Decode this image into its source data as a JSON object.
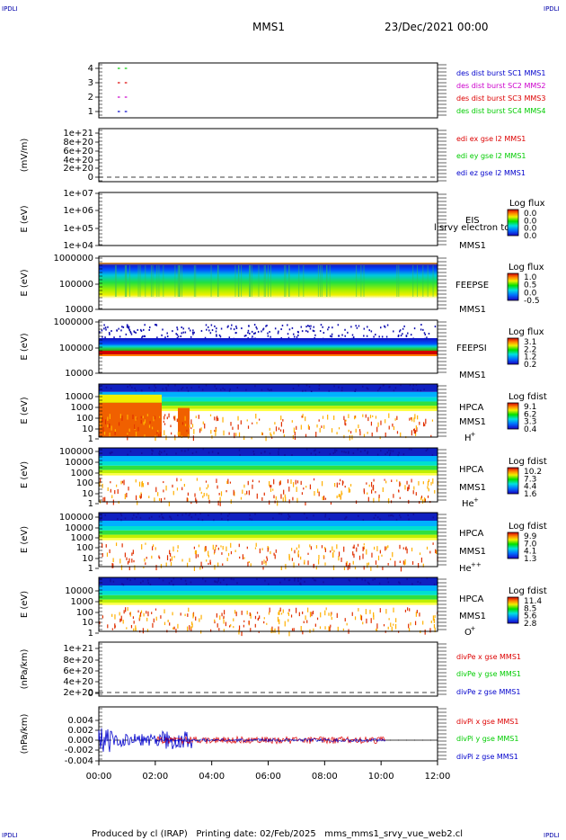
{
  "corner_tag": "IPDLI",
  "header": {
    "mission": "MMS1",
    "date": "23/Dec/2021 00:00"
  },
  "footer": {
    "text": "Produced by cl (IRAP)   Printing date: 02/Feb/2025   mms_mms1_srvy_vue_web2.cl"
  },
  "colors": {
    "red": "#dd0000",
    "green": "#00cc00",
    "blue": "#0000cc",
    "magenta": "#cc00cc"
  },
  "chart_data": {
    "type": "heatmap",
    "x_ticks": [
      "00:00",
      "02:00",
      "04:00",
      "06:00",
      "08:00",
      "10:00",
      "12:00"
    ],
    "panels": [
      {
        "id": "burst",
        "type": "line",
        "ylabel": "",
        "yticks": [
          "4",
          "3",
          "2",
          "1"
        ],
        "legend": [
          {
            "text": "des dist burst SC1 MMS1",
            "color": "#0000cc"
          },
          {
            "text": "des dist burst SC2 MMS2",
            "color": "#cc00cc"
          },
          {
            "text": "des dist burst SC3 MMS3",
            "color": "#dd0000"
          },
          {
            "text": "des dist burst SC4 MMS4",
            "color": "#00cc00"
          }
        ],
        "series": [
          {
            "level": 4,
            "color": "#00cc00",
            "intervals": [
              [
                "00:40",
                "00:45"
              ],
              [
                "00:55",
                "01:00"
              ]
            ]
          },
          {
            "level": 3,
            "color": "#dd0000",
            "intervals": [
              [
                "00:40",
                "00:45"
              ],
              [
                "00:55",
                "01:00"
              ]
            ]
          },
          {
            "level": 2,
            "color": "#cc00cc",
            "intervals": [
              [
                "00:40",
                "00:45"
              ],
              [
                "00:55",
                "01:00"
              ]
            ]
          },
          {
            "level": 1,
            "color": "#0000cc",
            "intervals": [
              [
                "00:40",
                "00:45"
              ],
              [
                "00:55",
                "01:00"
              ]
            ]
          }
        ]
      },
      {
        "id": "edi",
        "type": "line",
        "ylabel": "(mV/m)",
        "yticks": [
          "1e+21",
          "8e+20",
          "6e+20",
          "4e+20",
          "2e+20",
          "0"
        ],
        "legend": [
          {
            "text": "edi ex gse l2 MMS1",
            "color": "#dd0000"
          },
          {
            "text": "edi ey gse l2 MMS1",
            "color": "#00cc00"
          },
          {
            "text": "edi ez gse l2 MMS1",
            "color": "#0000cc"
          }
        ]
      },
      {
        "id": "eis",
        "type": "heatmap",
        "ylabel": "E (eV)",
        "yticks": [
          "1e+07",
          "1e+06",
          "1e+05",
          "1e+04"
        ],
        "labels": [
          "EIS",
          "MMS1"
        ],
        "overlay": "l srvy electron to",
        "cbar_title": "Log flux",
        "cbar_ticks": [
          "0.0",
          "0.0",
          "0.0",
          "0.0"
        ]
      },
      {
        "id": "feepse",
        "type": "heatmap",
        "ylabel": "E (eV)",
        "yticks": [
          "1000000",
          "100000",
          "10000"
        ],
        "labels": [
          "FEEPSE",
          "MMS1"
        ],
        "cbar_title": "Log flux",
        "cbar_ticks": [
          "1.0",
          "0.5",
          "0.0",
          "-0.5"
        ]
      },
      {
        "id": "feepsi",
        "type": "heatmap",
        "ylabel": "E (eV)",
        "yticks": [
          "1000000",
          "100000",
          "10000"
        ],
        "labels": [
          "FEEPSI",
          "MMS1"
        ],
        "cbar_title": "Log flux",
        "cbar_ticks": [
          "3.1",
          "2.2",
          "1.2",
          "0.2"
        ]
      },
      {
        "id": "hpca_h",
        "type": "heatmap",
        "ylabel": "E (eV)",
        "yticks": [
          "10000",
          "1000",
          "100",
          "10",
          "1"
        ],
        "labels": [
          "HPCA",
          "MMS1"
        ],
        "species": "H",
        "charge": "+",
        "cbar_title": "Log fdist",
        "cbar_ticks": [
          "9.1",
          "6.2",
          "3.3",
          "0.4"
        ]
      },
      {
        "id": "hpca_he",
        "type": "heatmap",
        "ylabel": "E (eV)",
        "yticks": [
          "100000",
          "10000",
          "1000",
          "100",
          "10",
          "1"
        ],
        "labels": [
          "HPCA",
          "MMS1"
        ],
        "species": "He",
        "charge": "+",
        "cbar_title": "Log fdist",
        "cbar_ticks": [
          "10.2",
          "7.3",
          "4.4",
          "1.6"
        ]
      },
      {
        "id": "hpca_hepp",
        "type": "heatmap",
        "ylabel": "E (eV)",
        "yticks": [
          "100000",
          "10000",
          "1000",
          "100",
          "10",
          "1"
        ],
        "labels": [
          "HPCA",
          "MMS1"
        ],
        "species": "He",
        "charge": "++",
        "cbar_title": "Log fdist",
        "cbar_ticks": [
          "9.9",
          "7.0",
          "4.1",
          "1.3"
        ]
      },
      {
        "id": "hpca_o",
        "type": "heatmap",
        "ylabel": "E (eV)",
        "yticks": [
          "10000",
          "1000",
          "100",
          "10",
          "1"
        ],
        "labels": [
          "HPCA",
          "MMS1"
        ],
        "species": "O",
        "charge": "+",
        "cbar_title": "Log fdist",
        "cbar_ticks": [
          "11.4",
          "8.5",
          "5.6",
          "2.8"
        ]
      },
      {
        "id": "divpe",
        "type": "line",
        "ylabel": "(nPa/km)",
        "yticks": [
          "1e+21",
          "8e+20",
          "6e+20",
          "4e+20",
          "2e+20",
          "0"
        ],
        "legend": [
          {
            "text": "divPe x gse MMS1",
            "color": "#dd0000"
          },
          {
            "text": "divPe y gse MMS1",
            "color": "#00cc00"
          },
          {
            "text": "divPe z gse MMS1",
            "color": "#0000cc"
          }
        ]
      },
      {
        "id": "divpi",
        "type": "line",
        "ylabel": "(nPa/km)",
        "yticks": [
          "0.004",
          "0.002",
          "0.000",
          "-0.002",
          "-0.004"
        ],
        "legend": [
          {
            "text": "divPi x gse MMS1",
            "color": "#dd0000"
          },
          {
            "text": "divPi y gse MMS1",
            "color": "#00cc00"
          },
          {
            "text": "divPi z gse MMS1",
            "color": "#0000cc"
          }
        ]
      }
    ]
  }
}
